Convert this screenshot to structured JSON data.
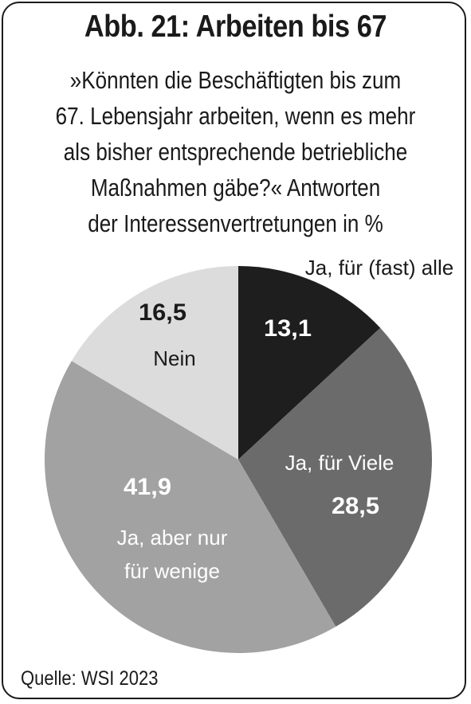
{
  "title": "Abb. 21: Arbeiten bis 67",
  "subtitle_lines": [
    "»Könnten die Beschäftigten bis zum",
    "67. Lebensjahr arbeiten, wenn es mehr",
    "als bisher entsprechende betriebliche",
    "Maßnahmen gäbe?« Antworten",
    "der Interessenvertretungen in %"
  ],
  "source": "Quelle: WSI 2023",
  "chart_data": {
    "type": "pie",
    "title": "Abb. 21: Arbeiten bis 67",
    "unit": "%",
    "start": "12 o'clock, clockwise",
    "slices": [
      {
        "label": "Ja, für (fast) alle",
        "label_lines": [
          "Ja, für (fast) alle"
        ],
        "value": 13.1,
        "value_text": "13,1",
        "color": "#1e1e1e",
        "text_color": "#ffffff",
        "label_outside": true
      },
      {
        "label": "Ja, für Viele",
        "label_lines": [
          "Ja, für Viele"
        ],
        "value": 28.5,
        "value_text": "28,5",
        "color": "#6b6b6b",
        "text_color": "#ffffff",
        "label_outside": false
      },
      {
        "label": "Ja, aber nur für wenige",
        "label_lines": [
          "Ja, aber nur",
          "für wenige"
        ],
        "value": 41.9,
        "value_text": "41,9",
        "color": "#a2a2a2",
        "text_color": "#ffffff",
        "label_outside": false
      },
      {
        "label": "Nein",
        "label_lines": [
          "Nein"
        ],
        "value": 16.5,
        "value_text": "16,5",
        "color": "#dcdcdc",
        "text_color": "#1a1a1a",
        "label_outside": false
      }
    ]
  }
}
